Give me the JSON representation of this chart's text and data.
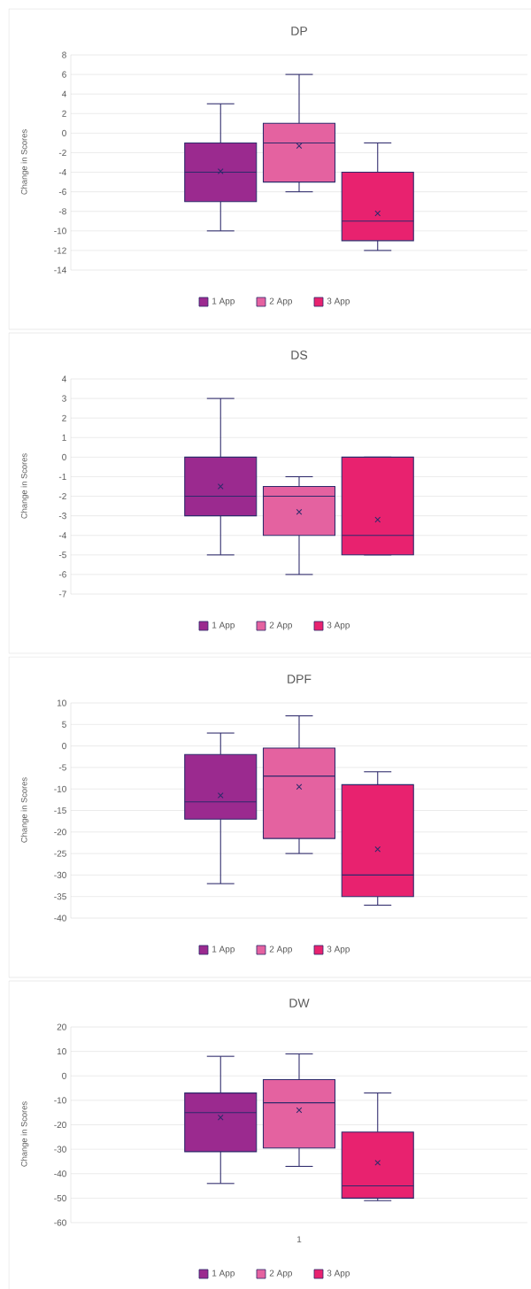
{
  "chart_data": [
    {
      "type": "box",
      "title": "DP",
      "ylabel": "Change in Scores",
      "categories": [
        null
      ],
      "ylim": [
        -14,
        8
      ],
      "yticks": [
        -14,
        -12,
        -10,
        -8,
        -6,
        -4,
        -2,
        0,
        2,
        4,
        6,
        8
      ],
      "grid": "y",
      "legend": "bottom",
      "series": [
        {
          "name": "1 App",
          "color": "#9b2a8f",
          "boxes": [
            {
              "low": -10,
              "q1": -7,
              "median": -4,
              "q3": -1,
              "high": 3,
              "mean": -3.9
            }
          ]
        },
        {
          "name": "2 App",
          "color": "#e462a0",
          "boxes": [
            {
              "low": -6,
              "q1": -5,
              "median": -1,
              "q3": 1,
              "high": 6,
              "mean": -1.3
            }
          ]
        },
        {
          "name": "3 App",
          "color": "#e8226f",
          "boxes": [
            {
              "low": -12,
              "q1": -11,
              "median": -9,
              "q3": -4,
              "high": -1,
              "mean": -8.2
            }
          ]
        }
      ]
    },
    {
      "type": "box",
      "title": "DS",
      "ylabel": "Change in Scores",
      "categories": [
        null
      ],
      "ylim": [
        -7,
        4
      ],
      "yticks": [
        -7,
        -6,
        -5,
        -4,
        -3,
        -2,
        -1,
        0,
        1,
        2,
        3,
        4
      ],
      "grid": "y",
      "legend": "bottom",
      "series": [
        {
          "name": "1 App",
          "color": "#9b2a8f",
          "boxes": [
            {
              "low": -5,
              "q1": -3,
              "median": -2,
              "q3": 0,
              "high": 3,
              "mean": -1.5
            }
          ]
        },
        {
          "name": "2 App",
          "color": "#e462a0",
          "boxes": [
            {
              "low": -6,
              "q1": -4,
              "median": -2,
              "q3": -1.5,
              "high": -1,
              "mean": -2.8
            }
          ]
        },
        {
          "name": "3 App",
          "color": "#e8226f",
          "boxes": [
            {
              "low": -5,
              "q1": -5,
              "median": -4,
              "q3": 0,
              "high": 0,
              "mean": -3.2
            }
          ]
        }
      ]
    },
    {
      "type": "box",
      "title": "DPF",
      "ylabel": "Change in Scores",
      "categories": [
        null
      ],
      "ylim": [
        -40,
        10
      ],
      "yticks": [
        -40,
        -35,
        -30,
        -25,
        -20,
        -15,
        -10,
        -5,
        0,
        5,
        10
      ],
      "grid": "y",
      "legend": "bottom",
      "series": [
        {
          "name": "1 App",
          "color": "#9b2a8f",
          "boxes": [
            {
              "low": -32,
              "q1": -17,
              "median": -13,
              "q3": -2,
              "high": 3,
              "mean": -11.5
            }
          ]
        },
        {
          "name": "2 App",
          "color": "#e462a0",
          "boxes": [
            {
              "low": -25,
              "q1": -21.5,
              "median": -7,
              "q3": -0.5,
              "high": 7,
              "mean": -9.5
            }
          ]
        },
        {
          "name": "3 App",
          "color": "#e8226f",
          "boxes": [
            {
              "low": -37,
              "q1": -35,
              "median": -30,
              "q3": -9,
              "high": -6,
              "mean": -24
            }
          ]
        }
      ]
    },
    {
      "type": "box",
      "title": "DW",
      "ylabel": "Change in Scores",
      "categories": [
        "1"
      ],
      "ylim": [
        -60,
        20
      ],
      "yticks": [
        -60,
        -50,
        -40,
        -30,
        -20,
        -10,
        0,
        10,
        20
      ],
      "grid": "y",
      "legend": "bottom",
      "series": [
        {
          "name": "1 App",
          "color": "#9b2a8f",
          "boxes": [
            {
              "low": -44,
              "q1": -31,
              "median": -15,
              "q3": -7,
              "high": 8,
              "mean": -17
            }
          ]
        },
        {
          "name": "2 App",
          "color": "#e462a0",
          "boxes": [
            {
              "low": -37,
              "q1": -29.5,
              "median": -11,
              "q3": -1.5,
              "high": 9,
              "mean": -14
            }
          ]
        },
        {
          "name": "3 App",
          "color": "#e8226f",
          "boxes": [
            {
              "low": -51,
              "q1": -50,
              "median": -45,
              "q3": -23,
              "high": -7,
              "mean": -35.5
            }
          ]
        }
      ]
    }
  ]
}
